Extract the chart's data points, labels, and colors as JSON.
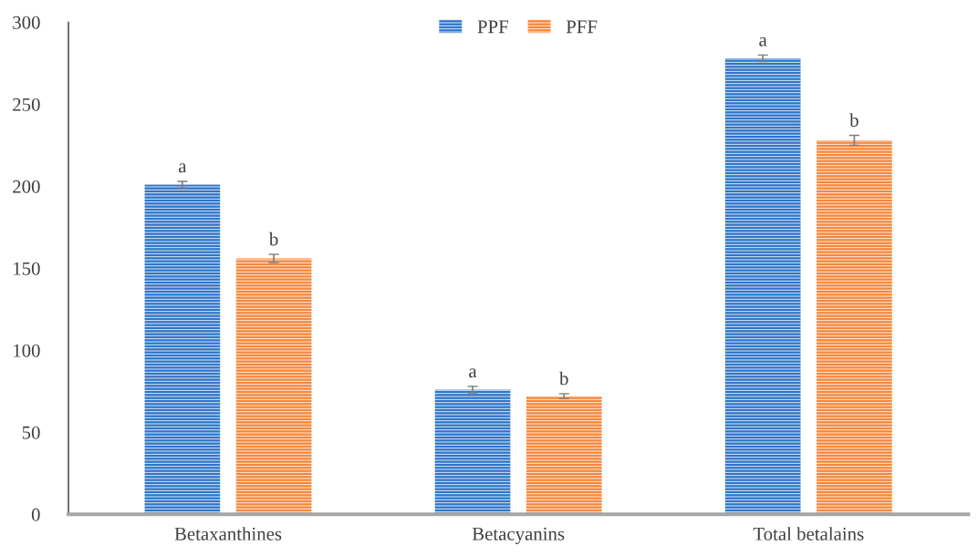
{
  "chart_data": {
    "type": "bar",
    "categories": [
      "Betaxanthines",
      "Betacyanins",
      "Total betalains"
    ],
    "series": [
      {
        "name": "PPF",
        "color": "#2f75c8",
        "values": [
          201,
          76,
          278
        ],
        "errors": [
          2,
          2,
          2
        ]
      },
      {
        "name": "PFF",
        "color": "#f5873c",
        "values": [
          156,
          72,
          228
        ],
        "errors": [
          2.5,
          1.5,
          3
        ]
      }
    ],
    "ylim": [
      0,
      300
    ],
    "yticks": [
      0,
      50,
      100,
      150,
      200,
      250,
      300
    ],
    "grid": false,
    "legend": "top",
    "annotations": [
      "a",
      "b",
      "a",
      "b",
      "a",
      "b"
    ]
  }
}
